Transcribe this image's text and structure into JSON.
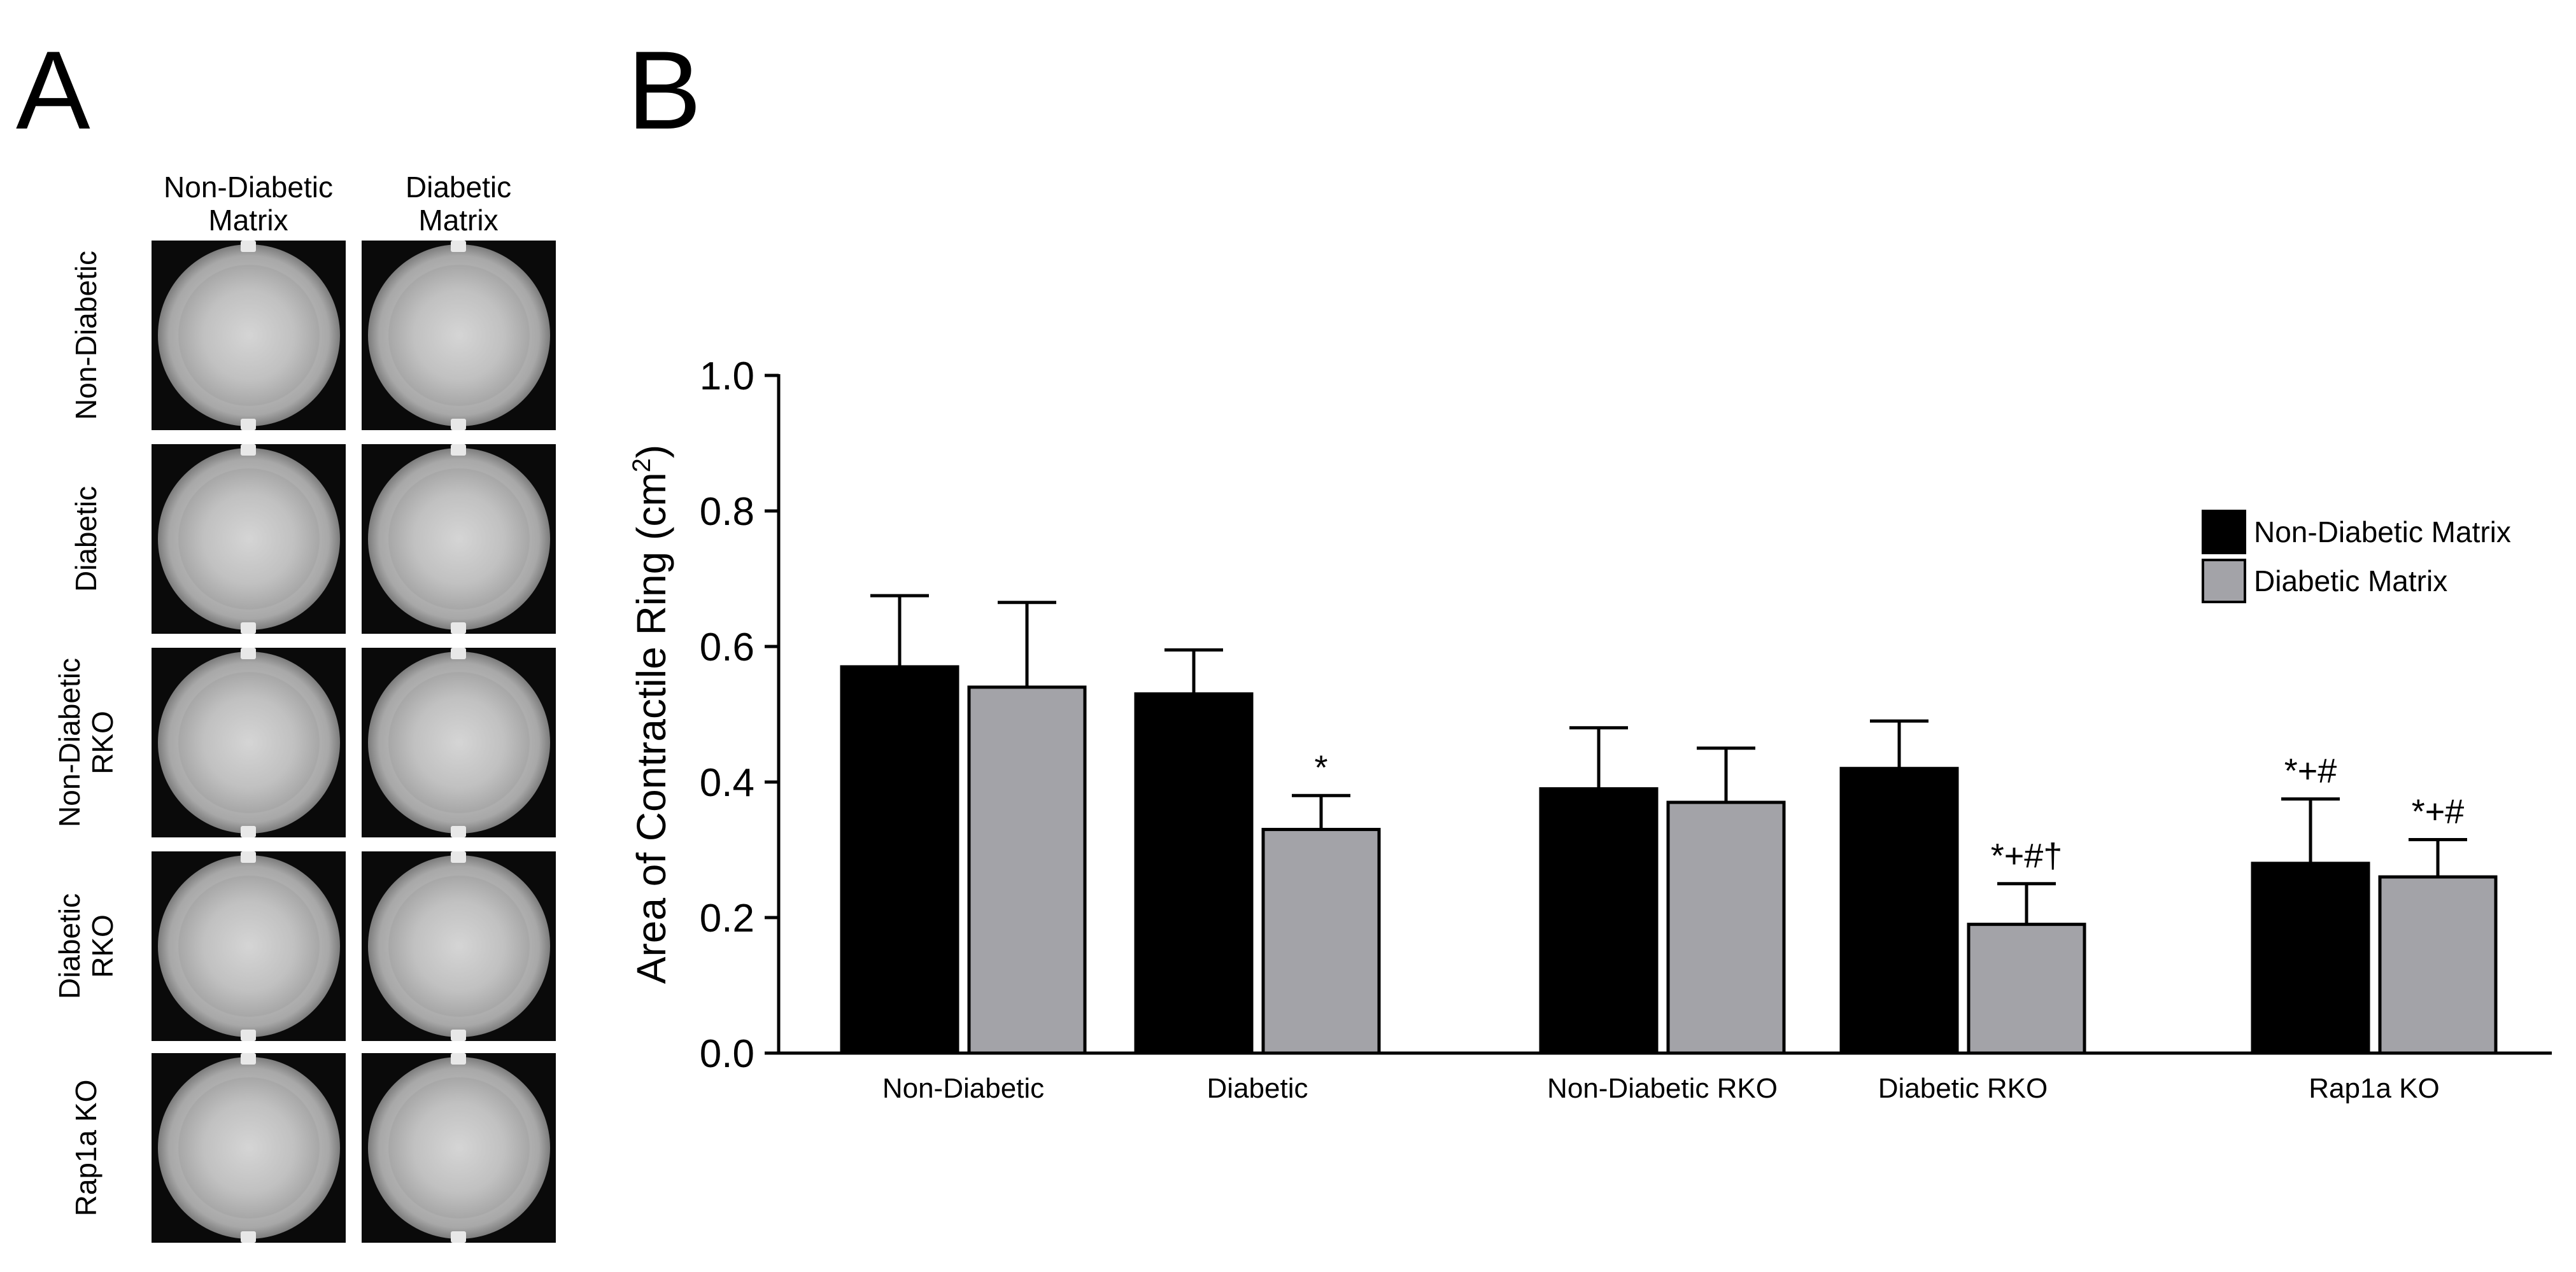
{
  "panel_a": {
    "label": "A",
    "columns": [
      "Non-Diabetic Matrix",
      "Diabetic Matrix"
    ],
    "column_lines": [
      [
        "Non-Diabetic",
        "Matrix"
      ],
      [
        "Diabetic",
        "Matrix"
      ]
    ],
    "rows": [
      [
        "Non-Diabetic"
      ],
      [
        "Diabetic"
      ],
      [
        "Non-Diabetic",
        "RKO"
      ],
      [
        "Diabetic",
        "RKO"
      ],
      [
        "Rap1a KO"
      ]
    ]
  },
  "panel_b": {
    "label": "B"
  },
  "chart_data": {
    "type": "bar",
    "title": "",
    "xlabel": "",
    "ylabel": "Area of Contractile Ring (cm²)",
    "ylabel_main": "Area of Contractile Ring (cm",
    "ylabel_sup": "2",
    "ylabel_close": ")",
    "ylim": [
      0,
      1.0
    ],
    "yticks": [
      "0.0",
      "0.2",
      "0.4",
      "0.6",
      "0.8",
      "1.0"
    ],
    "ytick_values": [
      0,
      0.2,
      0.4,
      0.6,
      0.8,
      1.0
    ],
    "categories": [
      "Non-Diabetic",
      "Diabetic",
      "Non-Diabetic RKO",
      "Diabetic RKO",
      "Rap1a KO"
    ],
    "series": [
      {
        "name": "Non-Diabetic Matrix",
        "color": "#000000",
        "values": [
          0.57,
          0.53,
          0.39,
          0.42,
          0.28
        ],
        "errors": [
          0.105,
          0.065,
          0.09,
          0.07,
          0.095
        ],
        "annotations": [
          "",
          "",
          "",
          "",
          "*+#"
        ]
      },
      {
        "name": "Diabetic Matrix",
        "color": "#a3a3a8",
        "values": [
          0.54,
          0.33,
          0.37,
          0.19,
          0.26
        ],
        "errors": [
          0.125,
          0.05,
          0.08,
          0.06,
          0.055
        ],
        "annotations": [
          "",
          "*",
          "",
          "*+#†",
          "*+#"
        ]
      }
    ],
    "legend": {
      "position": "right",
      "entries": [
        "Non-Diabetic Matrix",
        "Diabetic Matrix"
      ]
    },
    "grid": false
  }
}
